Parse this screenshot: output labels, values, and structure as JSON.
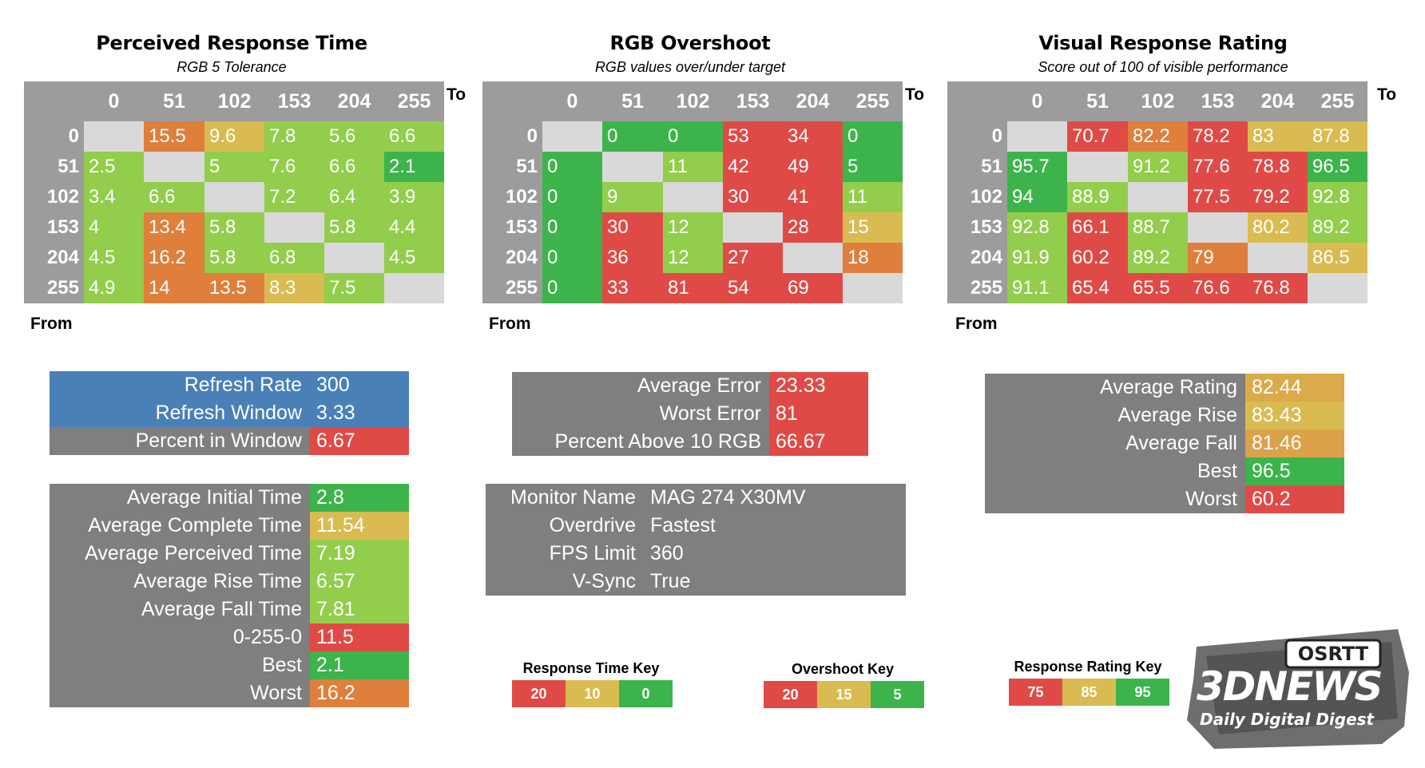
{
  "colors": {
    "header_gray": "#9c9c9c",
    "diag_gray": "#d9d9d9",
    "panel_gray": "#7f7f7f",
    "blue": "#4a80b8",
    "red": "#e04a46",
    "orange": "#df7f3c",
    "yellow": "#d9bb52",
    "light_green": "#92cd4c",
    "green": "#3cb44b"
  },
  "chart_data": [
    {
      "type": "heatmap",
      "title": "Perceived Response Time",
      "subtitle": "RGB 5 Tolerance",
      "xlabel": "To",
      "ylabel": "From",
      "categories": [
        "0",
        "51",
        "102",
        "153",
        "204",
        "255"
      ],
      "rows": [
        [
          null,
          15.5,
          9.6,
          7.8,
          5.6,
          6.6
        ],
        [
          2.5,
          null,
          5,
          7.6,
          6.6,
          2.1
        ],
        [
          3.4,
          6.6,
          null,
          7.2,
          6.4,
          3.9
        ],
        [
          4,
          13.4,
          5.8,
          null,
          5.8,
          4.4
        ],
        [
          4.5,
          16.2,
          5.8,
          6.8,
          null,
          4.5
        ],
        [
          4.9,
          14,
          13.5,
          8.3,
          7.5,
          null
        ]
      ]
    },
    {
      "type": "heatmap",
      "title": "RGB Overshoot",
      "subtitle": "RGB values over/under target",
      "xlabel": "To",
      "ylabel": "From",
      "categories": [
        "0",
        "51",
        "102",
        "153",
        "204",
        "255"
      ],
      "rows": [
        [
          null,
          0,
          0,
          53,
          34,
          0
        ],
        [
          0,
          null,
          11,
          42,
          49,
          5
        ],
        [
          0,
          9,
          null,
          30,
          41,
          11
        ],
        [
          0,
          30,
          12,
          null,
          28,
          15
        ],
        [
          0,
          36,
          12,
          27,
          null,
          18
        ],
        [
          0,
          33,
          81,
          54,
          69,
          null
        ]
      ]
    },
    {
      "type": "heatmap",
      "title": "Visual Response Rating",
      "subtitle": "Score out of 100 of visible performance",
      "xlabel": "To",
      "ylabel": "From",
      "categories": [
        "0",
        "51",
        "102",
        "153",
        "204",
        "255"
      ],
      "rows": [
        [
          null,
          70.7,
          82.2,
          78.2,
          83,
          87.8
        ],
        [
          95.7,
          null,
          91.2,
          77.6,
          78.8,
          96.5
        ],
        [
          94,
          88.9,
          null,
          77.5,
          79.2,
          92.8
        ],
        [
          92.8,
          66.1,
          88.7,
          null,
          80.2,
          89.2
        ],
        [
          91.9,
          60.2,
          89.2,
          79,
          null,
          86.5
        ],
        [
          91.1,
          65.4,
          65.5,
          76.6,
          76.8,
          null
        ]
      ]
    }
  ],
  "refresh": {
    "rows": [
      {
        "label": "Refresh Rate",
        "value": "300"
      },
      {
        "label": "Refresh Window",
        "value": "3.33"
      },
      {
        "label": "Percent in Window",
        "value": "6.67"
      }
    ]
  },
  "times": {
    "rows": [
      {
        "label": "Average Initial Time",
        "value": "2.8"
      },
      {
        "label": "Average Complete Time",
        "value": "11.54"
      },
      {
        "label": "Average Perceived Time",
        "value": "7.19"
      },
      {
        "label": "Average Rise Time",
        "value": "6.57"
      },
      {
        "label": "Average Fall Time",
        "value": "7.81"
      },
      {
        "label": "0-255-0",
        "value": "11.5"
      },
      {
        "label": "Best",
        "value": "2.1"
      },
      {
        "label": "Worst",
        "value": "16.2"
      }
    ]
  },
  "errors": {
    "rows": [
      {
        "label": "Average Error",
        "value": "23.33"
      },
      {
        "label": "Worst Error",
        "value": "81"
      },
      {
        "label": "Percent Above 10 RGB",
        "value": "66.67"
      }
    ]
  },
  "monitor": {
    "rows": [
      {
        "label": "Monitor Name",
        "value": "MAG 274 X30MV"
      },
      {
        "label": "Overdrive",
        "value": "Fastest"
      },
      {
        "label": "FPS Limit",
        "value": "360"
      },
      {
        "label": "V-Sync",
        "value": "True"
      }
    ]
  },
  "ratings": {
    "rows": [
      {
        "label": "Average Rating",
        "value": "82.44"
      },
      {
        "label": "Average Rise",
        "value": "83.43"
      },
      {
        "label": "Average Fall",
        "value": "81.46"
      },
      {
        "label": "Best",
        "value": "96.5"
      },
      {
        "label": "Worst",
        "value": "60.2"
      }
    ]
  },
  "keys": {
    "response_time": {
      "title": "Response Time Key",
      "items": [
        "20",
        "10",
        "0"
      ]
    },
    "overshoot": {
      "title": "Overshoot Key",
      "items": [
        "20",
        "15",
        "5"
      ]
    },
    "rating": {
      "title": "Response Rating Key",
      "items": [
        "75",
        "85",
        "95"
      ]
    }
  },
  "watermark": {
    "logo_text": "3DNEWS",
    "tagline": "Daily Digital Digest",
    "stamp": "OSRTT"
  }
}
